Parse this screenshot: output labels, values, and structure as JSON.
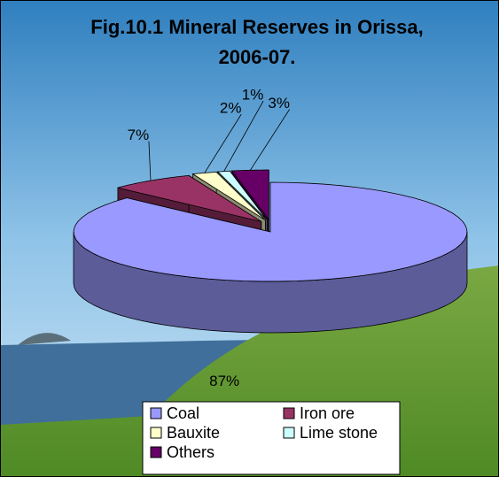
{
  "chart_data": {
    "type": "pie",
    "title": "Fig.10.1  Mineral Reserves in Orissa, 2006-07.",
    "categories": [
      "Coal",
      "Iron ore",
      "Bauxite",
      "Lime stone",
      "Others"
    ],
    "values": [
      87,
      7,
      2,
      1,
      3
    ],
    "value_labels": [
      "87%",
      "7%",
      "2%",
      "1%",
      "3%"
    ],
    "colors": [
      "#9999ff",
      "#993366",
      "#ffffcc",
      "#ccffff",
      "#660066"
    ],
    "legend": "bottom"
  }
}
